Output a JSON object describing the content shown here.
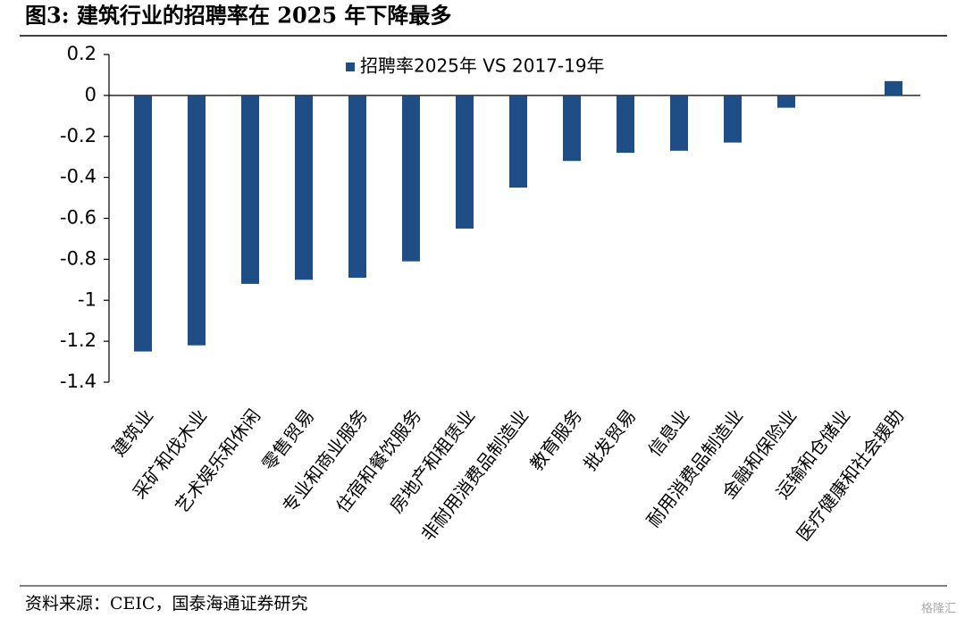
{
  "chart_data": {
    "type": "bar",
    "title": "图3:  建筑行业的招聘率在 2025 年下降最多",
    "source": "资料来源：CEIC，国泰海通证券研究",
    "watermark": "格隆汇",
    "categories": [
      "建筑业",
      "采矿和伐木业",
      "艺术娱乐和休闲",
      "零售贸易",
      "专业和商业服务",
      "住宿和餐饮服务",
      "房地产和租赁业",
      "非耐用消费品制造业",
      "教育服务",
      "批发贸易",
      "信息业",
      "耐用消费品制造业",
      "金融和保险业",
      "运输和仓储业",
      "医疗健康和社会援助"
    ],
    "series": [
      {
        "name": "招聘率2025年 VS 2017-19年",
        "color": "#1f4e87",
        "values": [
          -1.25,
          -1.22,
          -0.92,
          -0.9,
          -0.89,
          -0.81,
          -0.65,
          -0.45,
          -0.32,
          -0.28,
          -0.27,
          -0.23,
          -0.06,
          0,
          0.07
        ]
      }
    ],
    "ylim": [
      -1.4,
      0.2
    ],
    "yticks": [
      0.2,
      0,
      -0.2,
      -0.4,
      -0.6,
      -0.8,
      -1,
      -1.2,
      -1.4
    ],
    "legend_position": "upper center",
    "grid": false
  }
}
